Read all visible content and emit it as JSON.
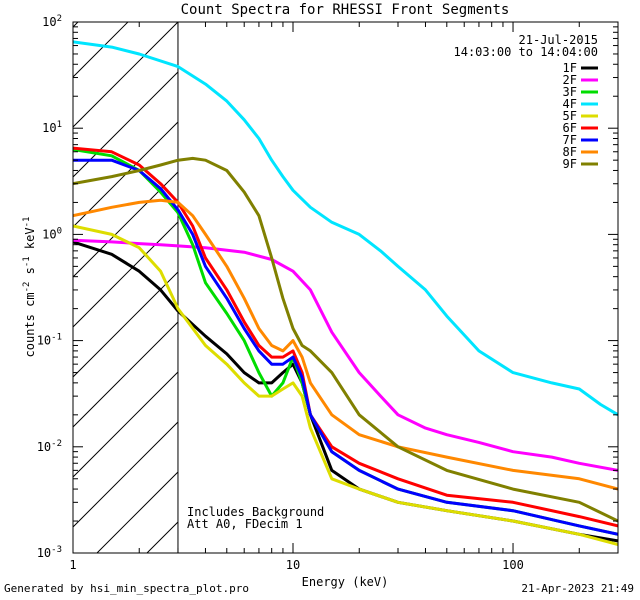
{
  "chart_data": {
    "type": "line",
    "title": "Count Spectra for RHESSI Front Segments",
    "xlabel": "Energy (keV)",
    "ylabel_parts": [
      "counts cm",
      "-2",
      " s",
      "-1",
      " keV",
      "-1"
    ],
    "xscale": "log",
    "yscale": "log",
    "xlim": [
      1,
      300
    ],
    "ylim": [
      0.001,
      100
    ],
    "x_ticks": [
      {
        "v": 10,
        "label": "10"
      },
      {
        "v": 100,
        "label": "100"
      },
      {
        "v": 1,
        "label": "1"
      }
    ],
    "y_ticks": [
      {
        "v": 100,
        "base": "10",
        "exp": "2"
      },
      {
        "v": 10,
        "base": "10",
        "exp": "1"
      },
      {
        "v": 1,
        "base": "10",
        "exp": "0"
      },
      {
        "v": 0.1,
        "base": "10",
        "exp": "-1"
      },
      {
        "v": 0.01,
        "base": "10",
        "exp": "-2"
      },
      {
        "v": 0.001,
        "base": "10",
        "exp": "-3"
      }
    ],
    "hatched_below": 3,
    "date_label": "21-Jul-2015",
    "time_label": "14:03:00 to 14:04:00",
    "notes": [
      "Includes Background",
      "Att A0, FDecim 1"
    ],
    "series": [
      {
        "name": "1F",
        "color": "#000000",
        "x": [
          1.0,
          1.5,
          2.0,
          2.5,
          3.0,
          4.0,
          5.0,
          6.0,
          7.0,
          8.0,
          9.0,
          10.0,
          11.0,
          12.0,
          15.0,
          20.0,
          30.0,
          50.0,
          100.0,
          200.0,
          300.0
        ],
        "y": [
          0.85,
          0.65,
          0.45,
          0.3,
          0.19,
          0.11,
          0.075,
          0.05,
          0.04,
          0.04,
          0.05,
          0.06,
          0.04,
          0.02,
          0.006,
          0.004,
          0.003,
          0.0025,
          0.002,
          0.0015,
          0.0013
        ]
      },
      {
        "name": "2F",
        "color": "#ff00ff",
        "x": [
          1.0,
          1.5,
          2.0,
          2.5,
          3.0,
          4.0,
          6.0,
          8.0,
          10.0,
          12.0,
          15.0,
          20.0,
          25.0,
          30.0,
          40.0,
          50.0,
          70.0,
          100.0,
          150.0,
          200.0,
          300.0
        ],
        "y": [
          0.88,
          0.85,
          0.82,
          0.8,
          0.78,
          0.75,
          0.68,
          0.58,
          0.45,
          0.3,
          0.12,
          0.05,
          0.03,
          0.02,
          0.015,
          0.013,
          0.011,
          0.009,
          0.008,
          0.007,
          0.006
        ]
      },
      {
        "name": "3F",
        "color": "#00dd00",
        "x": [
          1.0,
          1.5,
          2.0,
          2.5,
          3.0,
          3.5,
          4.0,
          5.0,
          6.0,
          7.0,
          8.0,
          9.0,
          10.0,
          11.0,
          12.0,
          15.0,
          20.0,
          30.0,
          50.0,
          100.0,
          200.0,
          300.0
        ],
        "y": [
          6.3,
          5.5,
          4.0,
          2.5,
          1.6,
          0.8,
          0.35,
          0.18,
          0.1,
          0.05,
          0.03,
          0.04,
          0.07,
          0.04,
          0.02,
          0.009,
          0.006,
          0.004,
          0.003,
          0.0025,
          0.0018,
          0.0015
        ]
      },
      {
        "name": "4F",
        "color": "#00e5ff",
        "x": [
          1.0,
          1.5,
          2.0,
          3.0,
          4.0,
          5.0,
          6.0,
          7.0,
          8.0,
          9.0,
          10.0,
          12.0,
          15.0,
          20.0,
          25.0,
          30.0,
          40.0,
          50.0,
          70.0,
          100.0,
          150.0,
          200.0,
          250.0,
          300.0
        ],
        "y": [
          65,
          58,
          50,
          38,
          26,
          18,
          12,
          8.0,
          5.0,
          3.5,
          2.6,
          1.8,
          1.3,
          1.0,
          0.7,
          0.5,
          0.3,
          0.17,
          0.08,
          0.05,
          0.04,
          0.035,
          0.025,
          0.02
        ]
      },
      {
        "name": "5F",
        "color": "#dddd00",
        "x": [
          1.0,
          1.5,
          2.0,
          2.5,
          3.0,
          4.0,
          5.0,
          6.0,
          7.0,
          8.0,
          9.0,
          10.0,
          11.0,
          12.0,
          15.0,
          20.0,
          30.0,
          50.0,
          100.0,
          200.0,
          300.0
        ],
        "y": [
          1.2,
          1.0,
          0.75,
          0.45,
          0.2,
          0.09,
          0.06,
          0.04,
          0.03,
          0.03,
          0.035,
          0.04,
          0.03,
          0.015,
          0.005,
          0.004,
          0.003,
          0.0025,
          0.002,
          0.0015,
          0.0012
        ]
      },
      {
        "name": "6F",
        "color": "#ff0000",
        "x": [
          1.0,
          1.5,
          2.0,
          2.5,
          3.0,
          3.5,
          4.0,
          5.0,
          6.0,
          7.0,
          8.0,
          9.0,
          10.0,
          11.0,
          12.0,
          15.0,
          20.0,
          30.0,
          50.0,
          100.0,
          200.0,
          300.0
        ],
        "y": [
          6.5,
          6.0,
          4.5,
          3.0,
          2.0,
          1.2,
          0.6,
          0.3,
          0.15,
          0.09,
          0.07,
          0.07,
          0.08,
          0.05,
          0.02,
          0.01,
          0.007,
          0.005,
          0.0035,
          0.003,
          0.0022,
          0.0018
        ]
      },
      {
        "name": "7F",
        "color": "#0000ff",
        "x": [
          1.0,
          1.5,
          2.0,
          2.5,
          3.0,
          3.5,
          4.0,
          5.0,
          6.0,
          7.0,
          8.0,
          9.0,
          10.0,
          11.0,
          12.0,
          15.0,
          20.0,
          30.0,
          50.0,
          100.0,
          200.0,
          300.0
        ],
        "y": [
          5.0,
          5.0,
          4.0,
          2.7,
          1.7,
          1.0,
          0.5,
          0.25,
          0.13,
          0.08,
          0.06,
          0.06,
          0.07,
          0.045,
          0.02,
          0.009,
          0.006,
          0.004,
          0.003,
          0.0025,
          0.0018,
          0.0015
        ]
      },
      {
        "name": "8F",
        "color": "#ff8800",
        "x": [
          1.0,
          1.5,
          2.0,
          2.5,
          3.0,
          3.5,
          4.0,
          5.0,
          6.0,
          7.0,
          8.0,
          9.0,
          10.0,
          11.0,
          12.0,
          15.0,
          20.0,
          30.0,
          50.0,
          100.0,
          200.0,
          300.0
        ],
        "y": [
          1.5,
          1.8,
          2.0,
          2.1,
          2.0,
          1.5,
          1.0,
          0.5,
          0.25,
          0.13,
          0.09,
          0.08,
          0.1,
          0.07,
          0.04,
          0.02,
          0.013,
          0.01,
          0.008,
          0.006,
          0.005,
          0.004
        ]
      },
      {
        "name": "9F",
        "color": "#808000",
        "x": [
          1.0,
          1.5,
          2.0,
          2.5,
          3.0,
          3.5,
          4.0,
          5.0,
          6.0,
          7.0,
          8.0,
          9.0,
          10.0,
          11.0,
          12.0,
          15.0,
          20.0,
          30.0,
          50.0,
          100.0,
          200.0,
          300.0
        ],
        "y": [
          3.0,
          3.5,
          4.0,
          4.5,
          5.0,
          5.2,
          5.0,
          4.0,
          2.5,
          1.5,
          0.6,
          0.25,
          0.13,
          0.09,
          0.08,
          0.05,
          0.02,
          0.01,
          0.006,
          0.004,
          0.003,
          0.002
        ]
      }
    ]
  },
  "footer": {
    "left": "Generated by hsi_min_spectra_plot.pro",
    "right": "21-Apr-2023 21:49"
  }
}
